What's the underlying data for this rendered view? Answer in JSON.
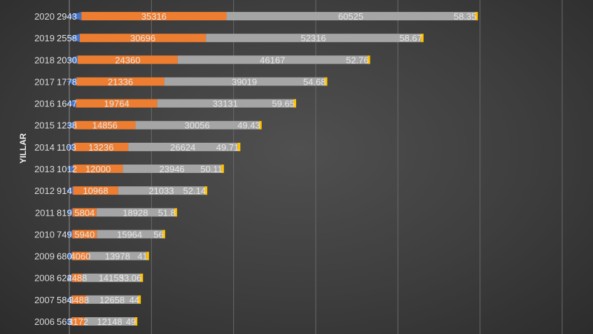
{
  "chart_data": {
    "type": "bar",
    "orientation": "horizontal",
    "stacked": true,
    "ylabel": "YILLAR",
    "categories": [
      "2006",
      "2007",
      "2008",
      "2009",
      "2010",
      "2011",
      "2012",
      "2013",
      "2014",
      "2015",
      "2016",
      "2017",
      "2018",
      "2019",
      "2020"
    ],
    "series": [
      {
        "color": "#4472c4",
        "values": [
          563,
          584,
          624,
          680,
          749,
          819,
          914,
          1012,
          1103,
          1238,
          1647,
          1778,
          2030,
          2558,
          2943
        ]
      },
      {
        "color": "#ed7d31",
        "values": [
          3172,
          3488,
          2488,
          4060,
          5940,
          5804,
          10968,
          12000,
          13236,
          14856,
          19764,
          21336,
          24360,
          30696,
          35316
        ]
      },
      {
        "color": "#a5a5a5",
        "values": [
          12148,
          12658,
          14153,
          13978,
          15964,
          18928,
          21033,
          23946,
          26624,
          30056,
          33131,
          39019,
          46167,
          52316,
          60525
        ]
      },
      {
        "color": "#ffc000",
        "values": [
          49,
          44,
          53.06,
          41,
          56,
          51.8,
          52.14,
          50.11,
          49.71,
          49.43,
          59.65,
          54.68,
          52.76,
          58.67,
          58.35
        ]
      }
    ],
    "display_labels": [
      [
        "563",
        "3172",
        "12148",
        "49"
      ],
      [
        "584",
        "3488",
        "12658",
        "44"
      ],
      [
        "624",
        "2488",
        "14153",
        "53.06"
      ],
      [
        "680",
        "4060",
        "13978",
        "41"
      ],
      [
        "749",
        "5940",
        "15964",
        "56"
      ],
      [
        "819",
        "5804",
        "18928",
        "51.8"
      ],
      [
        "914",
        "10968",
        "21033",
        "52.14"
      ],
      [
        "1012",
        "12000",
        "23946",
        "50.11"
      ],
      [
        "1103",
        "13236",
        "26624",
        "49.71"
      ],
      [
        "1238",
        "14856",
        "30056",
        "49.43"
      ],
      [
        "1647",
        "19764",
        "33131",
        "59.65"
      ],
      [
        "1778",
        "21336",
        "39019",
        "54.68"
      ],
      [
        "2030",
        "24360",
        "46167",
        "52.76"
      ],
      [
        "2558",
        "30696",
        "52316",
        "58.67"
      ],
      [
        "2943",
        "35316",
        "60525",
        "58.35"
      ]
    ],
    "xlim": [
      0,
      120000
    ],
    "grid": "vertical"
  }
}
